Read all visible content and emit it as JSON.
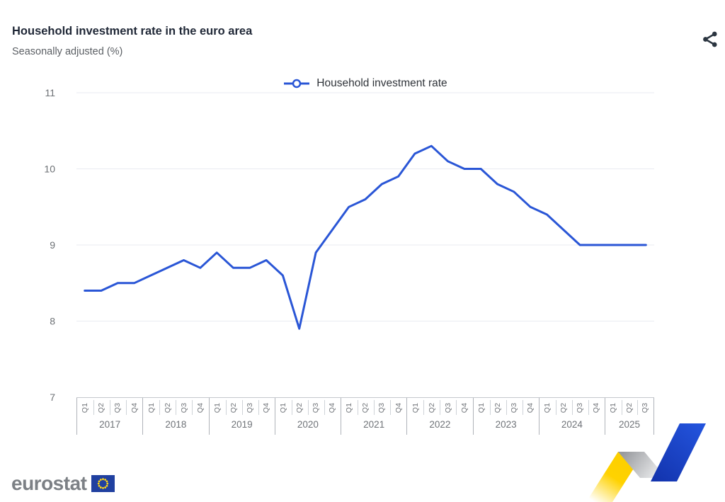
{
  "header": {
    "title": "Household investment rate in the euro area",
    "subtitle": "Seasonally adjusted (%)"
  },
  "toolbar": {
    "share_icon": "share-nodes"
  },
  "legend": {
    "label": "Household investment rate"
  },
  "colors": {
    "series_blue": "#2a56d6",
    "eu_flag_blue": "#2040a0",
    "star_yellow": "#ffd617",
    "ribbon_yellow": "#ffd200",
    "ribbon_blue": "#1f47c5",
    "title_navy": "#1f2736"
  },
  "chart_data": {
    "type": "line",
    "title": "Household investment rate in the euro area",
    "subtitle": "Seasonally adjusted (%)",
    "unit": "%",
    "ylim": [
      7,
      11
    ],
    "yticks": [
      7,
      8,
      9,
      10,
      11
    ],
    "grid": true,
    "legend_position": "top",
    "years": [
      {
        "label": "2017",
        "quarters": [
          "Q1",
          "Q2",
          "Q3",
          "Q4"
        ]
      },
      {
        "label": "2018",
        "quarters": [
          "Q1",
          "Q2",
          "Q3",
          "Q4"
        ]
      },
      {
        "label": "2019",
        "quarters": [
          "Q1",
          "Q2",
          "Q3",
          "Q4"
        ]
      },
      {
        "label": "2020",
        "quarters": [
          "Q1",
          "Q2",
          "Q3",
          "Q4"
        ]
      },
      {
        "label": "2021",
        "quarters": [
          "Q1",
          "Q2",
          "Q3",
          "Q4"
        ]
      },
      {
        "label": "2022",
        "quarters": [
          "Q1",
          "Q2",
          "Q3",
          "Q4"
        ]
      },
      {
        "label": "2023",
        "quarters": [
          "Q1",
          "Q2",
          "Q3",
          "Q4"
        ]
      },
      {
        "label": "2024",
        "quarters": [
          "Q1",
          "Q2",
          "Q3",
          "Q4"
        ]
      },
      {
        "label": "2025",
        "quarters": [
          "Q1",
          "Q2",
          "Q3"
        ]
      }
    ],
    "series": [
      {
        "name": "Household investment rate",
        "color": "#2a56d6",
        "values": [
          8.4,
          8.4,
          8.5,
          8.5,
          8.6,
          8.7,
          8.8,
          8.7,
          8.9,
          8.7,
          8.7,
          8.8,
          8.6,
          7.9,
          8.9,
          9.2,
          9.5,
          9.6,
          9.8,
          9.9,
          10.2,
          10.3,
          10.1,
          10.0,
          10.0,
          9.8,
          9.7,
          9.5,
          9.4,
          9.2,
          9.0,
          9.0,
          9.0,
          9.0,
          9.0
        ]
      }
    ]
  },
  "footer": {
    "logo_text": "eurostat"
  }
}
